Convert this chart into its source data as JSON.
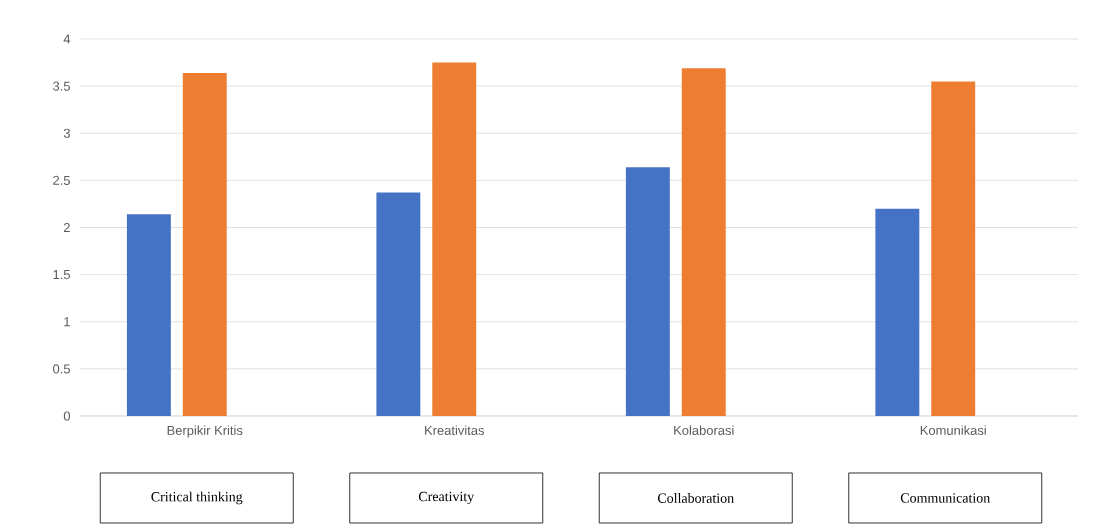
{
  "chart_data": {
    "type": "bar",
    "categories": [
      "Berpikir Kritis",
      "Kreativitas",
      "Kolaborasi",
      "Komunikasi"
    ],
    "series": [
      {
        "color": "#4472c4",
        "values": [
          2.14,
          2.37,
          2.64,
          2.2
        ]
      },
      {
        "color": "#ed7d31",
        "values": [
          3.64,
          3.75,
          3.69,
          3.55
        ]
      }
    ],
    "ylim": [
      0,
      4
    ],
    "yticks": [
      0,
      0.5,
      1,
      1.5,
      2,
      2.5,
      3,
      3.5,
      4
    ],
    "grid": "y",
    "annotations": [
      "Critical thinking",
      "Creativity",
      "Collaboration",
      "Communication"
    ]
  }
}
